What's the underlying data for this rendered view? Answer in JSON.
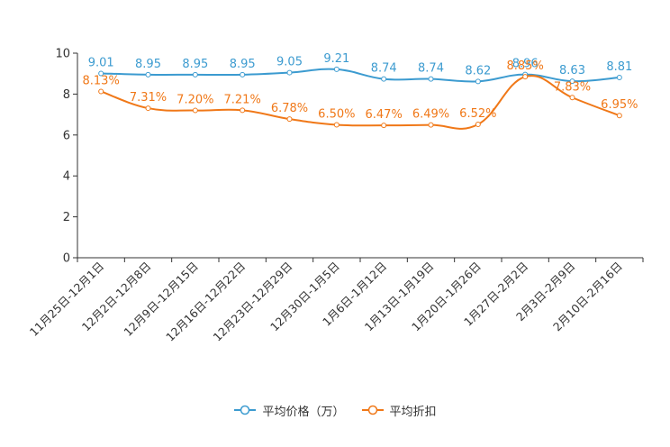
{
  "chart_data": {
    "type": "line",
    "title": "",
    "categories": [
      "11月25日-12月1日",
      "12月2日-12月8日",
      "12月9日-12月15日",
      "12月16日-12月22日",
      "12月23日-12月29日",
      "12月30日-1月5日",
      "1月6日-1月12日",
      "1月13日-1月19日",
      "1月20日-1月26日",
      "1月27日-2月2日",
      "2月3日-2月9日",
      "2月10日-2月16日"
    ],
    "y_ticks": [
      "0",
      "2",
      "4",
      "6",
      "8",
      "10"
    ],
    "ylim": [
      0,
      10
    ],
    "series": [
      {
        "name": "平均价格（万）",
        "color": "#3c9bd0",
        "values": [
          9.01,
          8.95,
          8.95,
          8.95,
          9.05,
          9.21,
          8.74,
          8.74,
          8.62,
          8.96,
          8.63,
          8.81
        ],
        "labels": [
          "9.01",
          "8.95",
          "8.95",
          "8.95",
          "9.05",
          "9.21",
          "8.74",
          "8.74",
          "8.62",
          "8.96",
          "8.63",
          "8.81"
        ]
      },
      {
        "name": "平均折扣",
        "color": "#f07818",
        "values": [
          8.13,
          7.31,
          7.2,
          7.21,
          6.78,
          6.5,
          6.47,
          6.49,
          6.52,
          8.85,
          7.83,
          6.95
        ],
        "labels": [
          "8.13%",
          "7.31%",
          "7.20%",
          "7.21%",
          "6.78%",
          "6.50%",
          "6.47%",
          "6.49%",
          "6.52%",
          "8.85%",
          "7.83%",
          "6.95%"
        ]
      }
    ],
    "legend_position": "bottom-center"
  }
}
